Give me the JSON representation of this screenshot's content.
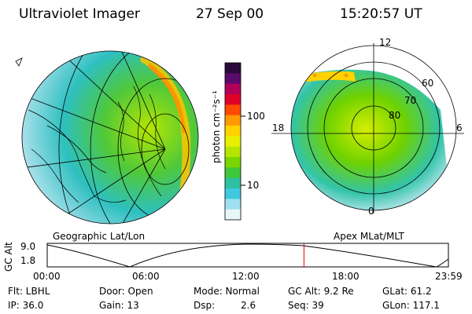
{
  "header": {
    "title": "Ultraviolet Imager",
    "date": "27 Sep 00",
    "time": "15:20:57 UT"
  },
  "colorbar": {
    "unit_label": "photon cm⁻²s⁻¹",
    "ticks": [
      "100",
      "10"
    ],
    "colors": [
      "#2a0a3a",
      "#5a0a6a",
      "#b0005a",
      "#e0002a",
      "#ff4a00",
      "#ff9a00",
      "#ffd200",
      "#e8f000",
      "#b6e600",
      "#7ad600",
      "#3ec83a",
      "#2ec0a0",
      "#40c8e0",
      "#9ee0f0",
      "#e8f6f8"
    ]
  },
  "geo_map": {
    "caption": "Geographic Lat/Lon"
  },
  "polar_plot": {
    "caption": "Apex MLat/MLT",
    "mlt_labels": [
      "12",
      "18",
      "6",
      "0"
    ],
    "lat_labels": [
      "60",
      "70",
      "80"
    ]
  },
  "timeline": {
    "ylabel": "GC Alt",
    "y_ticks": [
      "9.0",
      "1.8"
    ],
    "x_ticks": [
      "00:00",
      "06:00",
      "12:00",
      "18:00",
      "23:59"
    ],
    "marker_time": "15:20:57",
    "marker_color": "#dd0000"
  },
  "status": {
    "flt": "Flt: LBHL",
    "ip": "IP: 36.0",
    "door": "Door: Open",
    "gain": "Gain: 13",
    "mode": "Mode: Normal",
    "dsp_label": "Dsp:",
    "dsp_value": "2.6",
    "gc_alt": "GC Alt: 9.2 Re",
    "seq": "Seq: 39",
    "glat": "GLat: 61.2",
    "glon": "GLon: 117.1"
  }
}
